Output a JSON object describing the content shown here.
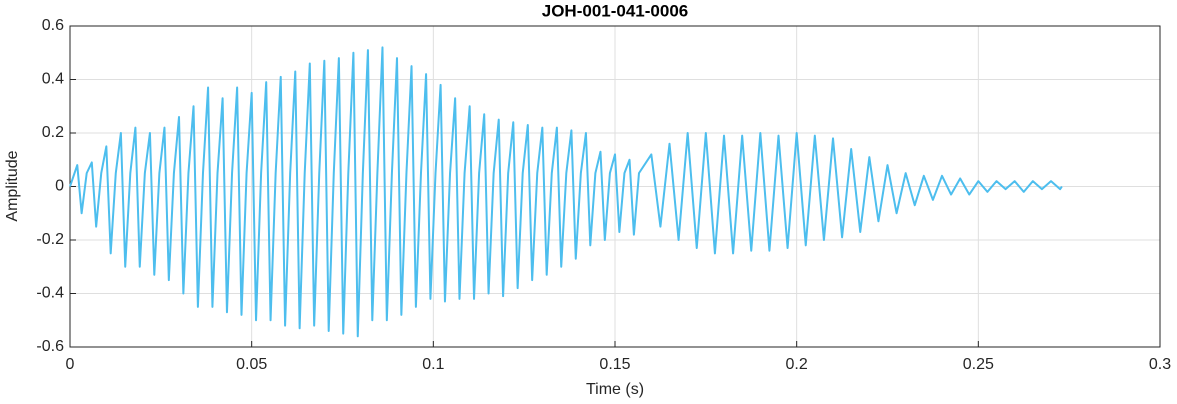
{
  "chart_data": {
    "type": "line",
    "title": "JOH-001-041-0006",
    "xlabel": "Time (s)",
    "ylabel": "Amplitude",
    "xlim": [
      0,
      0.3
    ],
    "ylim": [
      -0.6,
      0.6
    ],
    "xticks": [
      0,
      0.05,
      0.1,
      0.15,
      0.2,
      0.25,
      0.3
    ],
    "yticks": [
      -0.6,
      -0.4,
      -0.2,
      0,
      0.2,
      0.4,
      0.6
    ],
    "grid": true,
    "series": [
      {
        "color": "#4dbeee",
        "x": [
          0,
          0.002,
          0.0032,
          0.0046,
          0.006,
          0.0072,
          0.0086,
          0.01,
          0.0112,
          0.0126,
          0.014,
          0.0152,
          0.0166,
          0.018,
          0.0192,
          0.0206,
          0.022,
          0.0232,
          0.0246,
          0.026,
          0.0272,
          0.0286,
          0.03,
          0.0312,
          0.0326,
          0.034,
          0.0352,
          0.0366,
          0.038,
          0.0392,
          0.0406,
          0.042,
          0.0432,
          0.0446,
          0.046,
          0.0472,
          0.0486,
          0.05,
          0.0512,
          0.0526,
          0.054,
          0.0552,
          0.0566,
          0.058,
          0.0592,
          0.0606,
          0.062,
          0.0632,
          0.0646,
          0.066,
          0.0672,
          0.0686,
          0.07,
          0.0712,
          0.0726,
          0.074,
          0.0752,
          0.0766,
          0.078,
          0.0792,
          0.0806,
          0.082,
          0.0832,
          0.0846,
          0.086,
          0.0872,
          0.0886,
          0.09,
          0.0912,
          0.0926,
          0.094,
          0.0952,
          0.0966,
          0.098,
          0.0992,
          0.1006,
          0.102,
          0.1032,
          0.1046,
          0.106,
          0.1072,
          0.1086,
          0.11,
          0.1112,
          0.1126,
          0.114,
          0.1152,
          0.1166,
          0.118,
          0.1192,
          0.1206,
          0.122,
          0.1232,
          0.1246,
          0.126,
          0.1272,
          0.1286,
          0.13,
          0.1312,
          0.1326,
          0.134,
          0.1352,
          0.1366,
          0.138,
          0.1392,
          0.1406,
          0.142,
          0.1432,
          0.1446,
          0.146,
          0.1472,
          0.1486,
          0.15,
          0.1512,
          0.1526,
          0.154,
          0.1552,
          0.1566,
          0.16,
          0.1625,
          0.165,
          0.1675,
          0.17,
          0.1725,
          0.175,
          0.1775,
          0.18,
          0.1825,
          0.185,
          0.1875,
          0.19,
          0.1925,
          0.195,
          0.1975,
          0.2,
          0.2025,
          0.205,
          0.2075,
          0.21,
          0.2125,
          0.215,
          0.2175,
          0.22,
          0.2225,
          0.225,
          0.2275,
          0.23,
          0.2325,
          0.235,
          0.2375,
          0.24,
          0.2425,
          0.245,
          0.2475,
          0.25,
          0.2525,
          0.255,
          0.2575,
          0.26,
          0.2625,
          0.265,
          0.2675,
          0.27,
          0.2725,
          0.273
        ],
        "values": [
          0,
          0.08,
          -0.1,
          0.05,
          0.09,
          -0.15,
          0.05,
          0.15,
          -0.25,
          0.05,
          0.2,
          -0.3,
          0.05,
          0.22,
          -0.3,
          0.05,
          0.2,
          -0.33,
          0.05,
          0.22,
          -0.35,
          0.05,
          0.26,
          -0.4,
          0.05,
          0.3,
          -0.45,
          0.05,
          0.37,
          -0.45,
          0.05,
          0.33,
          -0.47,
          0.05,
          0.37,
          -0.48,
          0.05,
          0.35,
          -0.5,
          0.05,
          0.39,
          -0.5,
          0.05,
          0.41,
          -0.52,
          0.05,
          0.43,
          -0.53,
          0.05,
          0.46,
          -0.52,
          0.05,
          0.47,
          -0.54,
          0.05,
          0.48,
          -0.55,
          0.05,
          0.5,
          -0.56,
          0.05,
          0.51,
          -0.5,
          0.05,
          0.52,
          -0.5,
          0.05,
          0.48,
          -0.48,
          0.05,
          0.45,
          -0.45,
          0.05,
          0.42,
          -0.42,
          0.05,
          0.38,
          -0.43,
          0.05,
          0.33,
          -0.42,
          0.05,
          0.3,
          -0.42,
          0.05,
          0.27,
          -0.4,
          0.05,
          0.25,
          -0.41,
          0.05,
          0.24,
          -0.38,
          0.05,
          0.23,
          -0.35,
          0.05,
          0.22,
          -0.33,
          0.05,
          0.22,
          -0.3,
          0.05,
          0.21,
          -0.27,
          0.05,
          0.2,
          -0.22,
          0.05,
          0.13,
          -0.2,
          0.05,
          0.12,
          -0.17,
          0.05,
          0.1,
          -0.18,
          0.05,
          0.12,
          -0.15,
          0.16,
          -0.2,
          0.2,
          -0.23,
          0.2,
          -0.25,
          0.19,
          -0.25,
          0.19,
          -0.24,
          0.2,
          -0.24,
          0.19,
          -0.23,
          0.2,
          -0.22,
          0.19,
          -0.2,
          0.18,
          -0.19,
          0.14,
          -0.17,
          0.11,
          -0.13,
          0.08,
          -0.1,
          0.05,
          -0.07,
          0.04,
          -0.05,
          0.04,
          -0.03,
          0.03,
          -0.03,
          0.02,
          -0.02,
          0.02,
          -0.01,
          0.02,
          -0.02,
          0.02,
          -0.01,
          0.02,
          -0.01,
          0
        ]
      }
    ]
  }
}
